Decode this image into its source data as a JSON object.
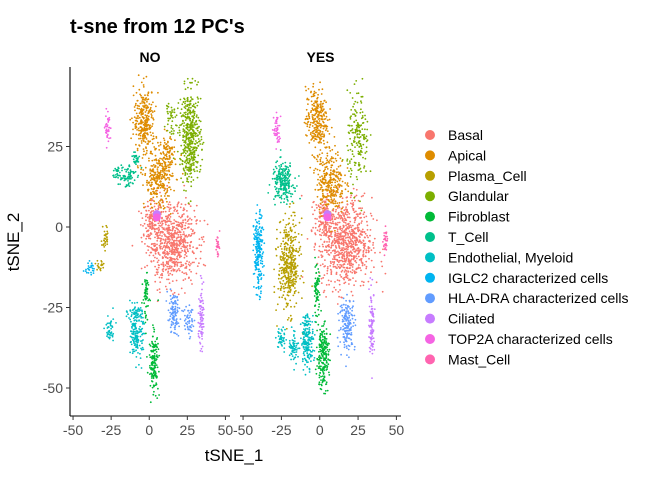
{
  "chart_data": {
    "type": "scatter",
    "title": "t-sne from 12 PC's",
    "xlabel": "tSNE_1",
    "ylabel": "tSNE_2",
    "xlim": [
      -52,
      53
    ],
    "ylim": [
      -58,
      46
    ],
    "xticks": [
      -50,
      -25,
      0,
      25,
      50
    ],
    "xtick_labels": [
      "-50",
      "-25",
      "0",
      "25",
      "50"
    ],
    "yticks": [
      -50,
      -25,
      0,
      25
    ],
    "ytick_labels": [
      "-50",
      "-25",
      "0",
      "25"
    ],
    "panels": [
      "NO",
      "YES"
    ],
    "legend_position": "right",
    "grid": false,
    "series": [
      {
        "name": "Basal",
        "color": "#F8766D"
      },
      {
        "name": "Apical",
        "color": "#DE8C00"
      },
      {
        "name": "Plasma_Cell",
        "color": "#B79F00"
      },
      {
        "name": "Glandular",
        "color": "#7CAE00"
      },
      {
        "name": "Fibroblast",
        "color": "#00BA38"
      },
      {
        "name": "T_Cell",
        "color": "#00C08B"
      },
      {
        "name": "Endothelial, Myeloid",
        "color": "#00BFC4"
      },
      {
        "name": "IGLC2 characterized cells",
        "color": "#00B4F0"
      },
      {
        "name": "HLA-DRA characterized cells",
        "color": "#619CFF"
      },
      {
        "name": "Ciliated",
        "color": "#C77CFF"
      },
      {
        "name": "TOP2A characterized cells",
        "color": "#F564E3"
      },
      {
        "name": "Mast_Cell",
        "color": "#FF64B0"
      }
    ],
    "clusters": {
      "NO": [
        {
          "series": 0,
          "cx": 15,
          "cy": -5,
          "rx": 16,
          "ry": 12,
          "n": 700
        },
        {
          "series": 0,
          "cx": 2,
          "cy": 2,
          "rx": 6,
          "ry": 6,
          "n": 120
        },
        {
          "series": 1,
          "cx": -3,
          "cy": 33,
          "rx": 7,
          "ry": 10,
          "n": 280
        },
        {
          "series": 1,
          "cx": 6,
          "cy": 15,
          "rx": 9,
          "ry": 9,
          "n": 280
        },
        {
          "series": 1,
          "cx": 12,
          "cy": 22,
          "rx": 5,
          "ry": 7,
          "n": 80
        },
        {
          "series": 3,
          "cx": 27,
          "cy": 28,
          "rx": 7,
          "ry": 14,
          "n": 450
        },
        {
          "series": 3,
          "cx": 14,
          "cy": 35,
          "rx": 3,
          "ry": 6,
          "n": 40
        },
        {
          "series": 5,
          "cx": -15,
          "cy": 16,
          "rx": 6,
          "ry": 4,
          "n": 70
        },
        {
          "series": 5,
          "cx": -9,
          "cy": 21,
          "rx": 3,
          "ry": 2,
          "n": 30
        },
        {
          "series": 5,
          "cx": -21,
          "cy": 17,
          "rx": 3,
          "ry": 2,
          "n": 25
        },
        {
          "series": 6,
          "cx": -8,
          "cy": -34,
          "rx": 4,
          "ry": 7,
          "n": 140
        },
        {
          "series": 6,
          "cx": -9,
          "cy": -27,
          "rx": 5,
          "ry": 3,
          "n": 60
        },
        {
          "series": 6,
          "cx": -26,
          "cy": -32,
          "rx": 3,
          "ry": 5,
          "n": 40
        },
        {
          "series": 4,
          "cx": 3,
          "cy": -42,
          "rx": 3,
          "ry": 9,
          "n": 150
        },
        {
          "series": 4,
          "cx": -2,
          "cy": -22,
          "rx": 2,
          "ry": 8,
          "n": 60
        },
        {
          "series": 8,
          "cx": 16,
          "cy": -27,
          "rx": 4,
          "ry": 6,
          "n": 100
        },
        {
          "series": 8,
          "cx": 26,
          "cy": -29,
          "rx": 3,
          "ry": 5,
          "n": 50
        },
        {
          "series": 9,
          "cx": 34,
          "cy": -28,
          "rx": 1.6,
          "ry": 10,
          "n": 80
        },
        {
          "series": 10,
          "cx": -27,
          "cy": 31,
          "rx": 2,
          "ry": 5,
          "n": 40
        },
        {
          "series": 11,
          "cx": 45,
          "cy": -6,
          "rx": 1.2,
          "ry": 4,
          "n": 25
        },
        {
          "series": 2,
          "cx": -29,
          "cy": -3,
          "rx": 2,
          "ry": 4,
          "n": 30
        },
        {
          "series": 2,
          "cx": -32,
          "cy": -12,
          "rx": 3,
          "ry": 2,
          "n": 20
        },
        {
          "series": 7,
          "cx": -39,
          "cy": -13,
          "rx": 3,
          "ry": 2,
          "n": 25
        }
      ],
      "YES": [
        {
          "series": 0,
          "cx": 17,
          "cy": -5,
          "rx": 17,
          "ry": 14,
          "n": 800
        },
        {
          "series": 0,
          "cx": 3,
          "cy": 3,
          "rx": 6,
          "ry": 6,
          "n": 120
        },
        {
          "series": 1,
          "cx": -2,
          "cy": 33,
          "rx": 7,
          "ry": 10,
          "n": 280
        },
        {
          "series": 1,
          "cx": 7,
          "cy": 14,
          "rx": 9,
          "ry": 10,
          "n": 300
        },
        {
          "series": 3,
          "cx": 25,
          "cy": 27,
          "rx": 7,
          "ry": 14,
          "n": 180
        },
        {
          "series": 5,
          "cx": -24,
          "cy": 14,
          "rx": 7,
          "ry": 6,
          "n": 220
        },
        {
          "series": 2,
          "cx": -20,
          "cy": -12,
          "rx": 7,
          "ry": 14,
          "n": 400
        },
        {
          "series": 7,
          "cx": -40,
          "cy": -8,
          "rx": 3,
          "ry": 12,
          "n": 200
        },
        {
          "series": 6,
          "cx": -8,
          "cy": -35,
          "rx": 4,
          "ry": 8,
          "n": 180
        },
        {
          "series": 6,
          "cx": -17,
          "cy": -37,
          "rx": 3,
          "ry": 5,
          "n": 60
        },
        {
          "series": 6,
          "cx": -25,
          "cy": -35,
          "rx": 3,
          "ry": 4,
          "n": 40
        },
        {
          "series": 4,
          "cx": 2,
          "cy": -40,
          "rx": 4,
          "ry": 10,
          "n": 220
        },
        {
          "series": 4,
          "cx": -2,
          "cy": -20,
          "rx": 2,
          "ry": 8,
          "n": 70
        },
        {
          "series": 8,
          "cx": 18,
          "cy": -30,
          "rx": 5,
          "ry": 8,
          "n": 160
        },
        {
          "series": 9,
          "cx": 34,
          "cy": -30,
          "rx": 1.8,
          "ry": 10,
          "n": 100
        },
        {
          "series": 10,
          "cx": -28,
          "cy": 30,
          "rx": 2,
          "ry": 5,
          "n": 45
        },
        {
          "series": 11,
          "cx": 43,
          "cy": -5,
          "rx": 1.5,
          "ry": 5,
          "n": 35
        }
      ]
    },
    "markers": [
      {
        "series": 9,
        "panel": "NO",
        "x": 5,
        "y": 4
      },
      {
        "series": 9,
        "panel": "YES",
        "x": 5,
        "y": 4
      },
      {
        "series": 10,
        "panel": "NO",
        "x": 5,
        "y": 3
      },
      {
        "series": 10,
        "panel": "YES",
        "x": 5,
        "y": 3
      }
    ]
  }
}
